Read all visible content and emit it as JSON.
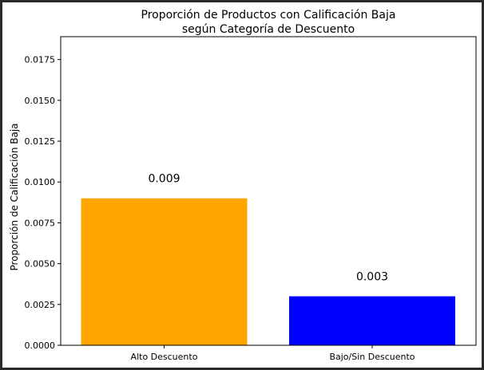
{
  "chart_data": {
    "type": "bar",
    "title_lines": [
      "Proporción de Productos con Calificación Baja",
      "según Categoría de Descuento"
    ],
    "xlabel": "",
    "ylabel": "Proporción de Calificación Baja",
    "categories": [
      "Alto Descuento",
      "Bajo/Sin Descuento"
    ],
    "values": [
      0.009,
      0.003
    ],
    "value_labels": [
      "0.009",
      "0.003"
    ],
    "bar_colors": [
      "#ffa500",
      "#0000ff"
    ],
    "ylim": [
      0,
      0.0189
    ],
    "yticks": [
      0.0,
      0.0025,
      0.005,
      0.0075,
      0.01,
      0.0125,
      0.015,
      0.0175
    ],
    "ytick_labels": [
      "0.0000",
      "0.0025",
      "0.0050",
      "0.0075",
      "0.0100",
      "0.0125",
      "0.0150",
      "0.0175"
    ],
    "grid": false,
    "legend": "none"
  }
}
